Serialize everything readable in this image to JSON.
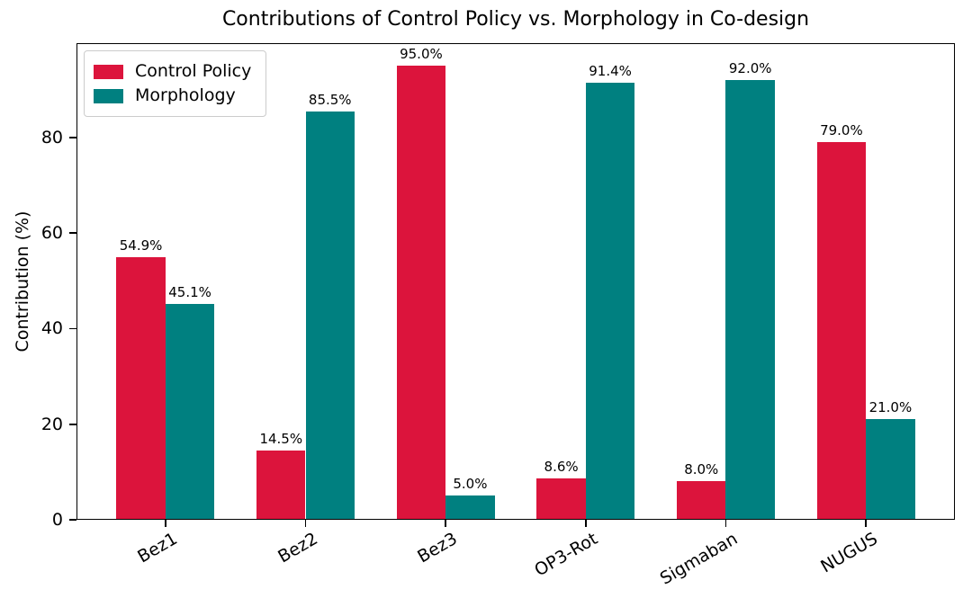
{
  "chart_data": {
    "type": "bar",
    "title": "Contributions of Control Policy vs. Morphology in Co-design",
    "xlabel": "",
    "ylabel": "Contribution (%)",
    "categories": [
      "Bez1",
      "Bez2",
      "Bez3",
      "OP3-Rot",
      "Sigmaban",
      "NUGUS"
    ],
    "series": [
      {
        "name": "Control Policy",
        "color": "#DC143C",
        "values": [
          54.9,
          14.5,
          95.0,
          8.6,
          8.0,
          79.0
        ],
        "value_labels": [
          "54.9%",
          "14.5%",
          "95.0%",
          "8.6%",
          "8.0%",
          "79.0%"
        ]
      },
      {
        "name": "Morphology",
        "color": "#008080",
        "values": [
          45.1,
          85.5,
          5.0,
          91.4,
          92.0,
          21.0
        ],
        "value_labels": [
          "45.1%",
          "85.5%",
          "5.0%",
          "91.4%",
          "92.0%",
          "21.0%"
        ]
      }
    ],
    "ytick_labels": [
      "0",
      "20",
      "40",
      "60",
      "80"
    ],
    "ytick_values": [
      0,
      20,
      40,
      60,
      80
    ],
    "ylim": [
      0,
      99.75
    ],
    "grid": false,
    "legend_position": "upper left",
    "colors": {
      "control_policy": "#DC143C",
      "morphology": "#008080",
      "spine": "#000000",
      "background": "#ffffff"
    }
  }
}
